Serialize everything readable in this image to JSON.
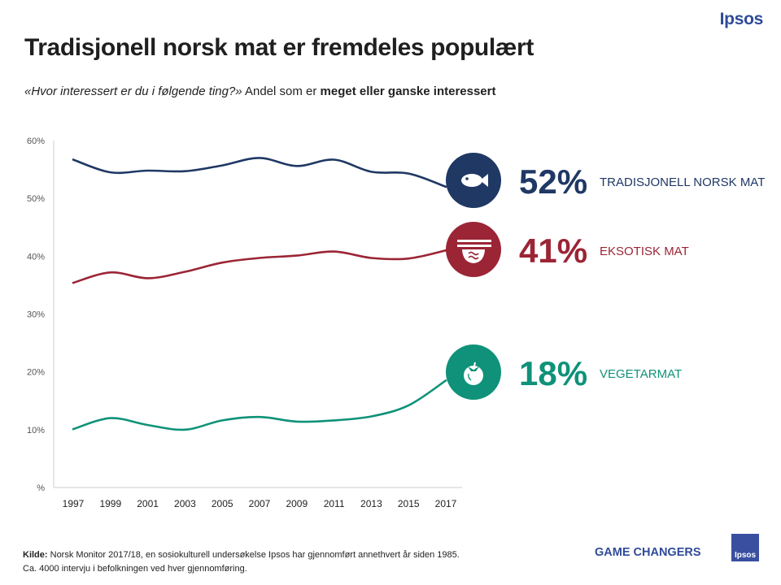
{
  "brand": {
    "logo_text": "Ipsos",
    "tagline": "GAME CHANGERS",
    "badge_text": "Ipsos"
  },
  "header": {
    "title": "Tradisjonell norsk mat er fremdeles populært",
    "subtitle_question": "«Hvor interessert er du i følgende ting?»",
    "subtitle_text": " Andel som er ",
    "subtitle_bold": "meget eller ganske interessert"
  },
  "footer": {
    "source_label": "Kilde:",
    "source_text": " Norsk Monitor 2017/18, en sosiokulturell undersøkelse Ipsos har gjennomført annethvert  år siden 1985.",
    "note": "Ca. 4000 intervju i befolkningen ved hver gjennomføring."
  },
  "chart_data": {
    "type": "line",
    "title": "Tradisjonell norsk mat er fremdeles populært",
    "xlabel": "",
    "ylabel": "",
    "x": [
      1997,
      1999,
      2001,
      2003,
      2005,
      2007,
      2009,
      2011,
      2013,
      2015,
      2017
    ],
    "x_tick_labels": [
      "1997",
      "1999",
      "2001",
      "2003",
      "2005",
      "2007",
      "2009",
      "2011",
      "2013",
      "2015",
      "2017"
    ],
    "ylim": [
      0,
      60
    ],
    "y_ticks": [
      0,
      10,
      20,
      30,
      40,
      50,
      60
    ],
    "y_tick_labels": [
      "%",
      "10%",
      "20%",
      "30%",
      "40%",
      "50%",
      "60%"
    ],
    "grid": false,
    "series": [
      {
        "name": "TRADISJONELL NORSK MAT",
        "label_value": "52%",
        "color": "#1f3864",
        "icon": "fish-icon",
        "values": [
          56.7,
          54.5,
          54.8,
          54.7,
          55.7,
          57.0,
          55.6,
          56.7,
          54.6,
          54.3,
          52.0
        ]
      },
      {
        "name": "EKSOTISK MAT",
        "label_value": "41%",
        "color": "#9b2535",
        "icon": "noodle-bowl-icon",
        "values": [
          35.4,
          37.2,
          36.2,
          37.3,
          38.9,
          39.7,
          40.1,
          40.8,
          39.7,
          39.6,
          41.0
        ]
      },
      {
        "name": "VEGETARMAT",
        "label_value": "18%",
        "color": "#0f9279",
        "icon": "tomato-icon",
        "values": [
          10.1,
          12.0,
          10.8,
          10.0,
          11.6,
          12.2,
          11.4,
          11.6,
          12.3,
          14.2,
          18.5
        ]
      }
    ]
  }
}
